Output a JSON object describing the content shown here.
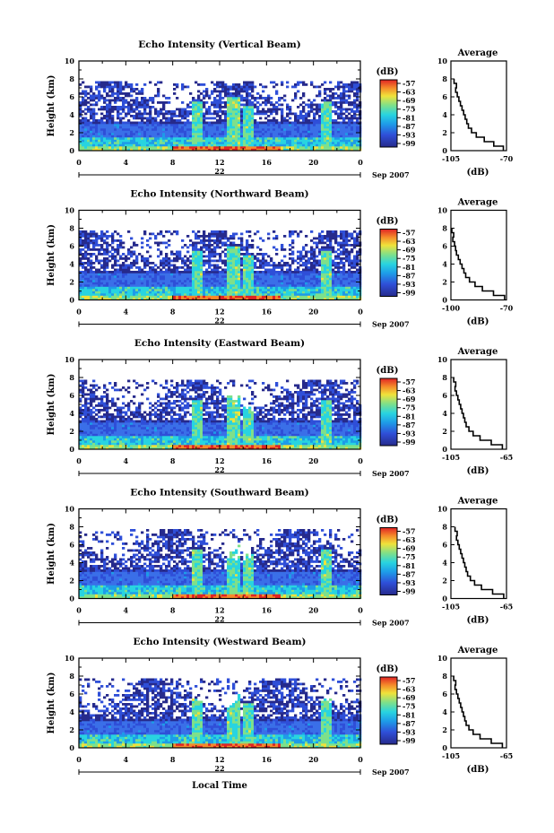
{
  "chart_data": [
    {
      "type": "heatmap",
      "title": "Echo Intensity (Vertical Beam)",
      "ylabel": "Height (km)",
      "ylim": [
        0,
        10
      ],
      "yticks": [
        0,
        2,
        4,
        6,
        8,
        10
      ],
      "xlim": [
        0,
        24
      ],
      "xticks": [
        "0",
        "4",
        "8",
        "12",
        "16",
        "20",
        "0"
      ],
      "day": "22",
      "month_label": "Sep 2007",
      "colorbar": {
        "unit": "(dB)",
        "ticks": [
          "-57",
          "-63",
          "-69",
          "-75",
          "-81",
          "-87",
          "-93",
          "-99"
        ],
        "range": [
          -99,
          -57
        ]
      },
      "average": {
        "title": "Average",
        "xlabel": "(dB)",
        "xlim": [
          -105,
          -70
        ],
        "xticks": [
          "-105",
          "-70"
        ],
        "heights": [
          0,
          0.5,
          1,
          1.5,
          2,
          2.5,
          3,
          3.5,
          4,
          4.5,
          5,
          5.5,
          6,
          6.5,
          7,
          7.5
        ],
        "values": [
          -72,
          -78,
          -84,
          -89,
          -92,
          -94,
          -95,
          -96,
          -97,
          -98,
          -99,
          -100,
          -101,
          -102,
          -101.5,
          -103
        ]
      }
    },
    {
      "type": "heatmap",
      "title": "Echo Intensity (Northward Beam)",
      "ylabel": "Height (km)",
      "ylim": [
        0,
        10
      ],
      "yticks": [
        0,
        2,
        4,
        6,
        8,
        10
      ],
      "xlim": [
        0,
        24
      ],
      "xticks": [
        "0",
        "4",
        "8",
        "12",
        "16",
        "20",
        "0"
      ],
      "day": "22",
      "month_label": "Sep 2007",
      "colorbar": {
        "unit": "(dB)",
        "ticks": [
          "-57",
          "-63",
          "-69",
          "-75",
          "-81",
          "-87",
          "-93",
          "-99"
        ],
        "range": [
          -99,
          -57
        ]
      },
      "average": {
        "title": "Average",
        "xlabel": "(dB)",
        "xlim": [
          -100,
          -70
        ],
        "xticks": [
          "-100",
          "-70"
        ],
        "heights": [
          0,
          0.5,
          1,
          1.5,
          2,
          2.5,
          3,
          3.5,
          4,
          4.5,
          5,
          5.5,
          6,
          6.5,
          7,
          7.5
        ],
        "values": [
          -71,
          -77,
          -83,
          -87,
          -90,
          -92,
          -93,
          -94,
          -95,
          -96,
          -97,
          -97.5,
          -98,
          -99,
          -98.5,
          -99.5
        ]
      }
    },
    {
      "type": "heatmap",
      "title": "Echo Intensity (Eastward Beam)",
      "ylabel": "Height (km)",
      "ylim": [
        0,
        10
      ],
      "yticks": [
        0,
        2,
        4,
        6,
        8,
        10
      ],
      "xlim": [
        0,
        24
      ],
      "xticks": [
        "0",
        "4",
        "8",
        "12",
        "16",
        "20",
        "0"
      ],
      "day": "22",
      "month_label": "Sep 2007",
      "colorbar": {
        "unit": "(dB)",
        "ticks": [
          "-57",
          "-63",
          "-69",
          "-75",
          "-81",
          "-87",
          "-93",
          "-99"
        ],
        "range": [
          -99,
          -57
        ]
      },
      "average": {
        "title": "Average",
        "xlabel": "(dB)",
        "xlim": [
          -105,
          -65
        ],
        "xticks": [
          "-105",
          "-65"
        ],
        "heights": [
          0,
          0.5,
          1,
          1.5,
          2,
          2.5,
          3,
          3.5,
          4,
          4.5,
          5,
          5.5,
          6,
          6.5,
          7,
          7.5
        ],
        "values": [
          -68,
          -76,
          -84,
          -89,
          -92,
          -94,
          -95,
          -96,
          -97,
          -98,
          -99,
          -100,
          -101,
          -102,
          -101.5,
          -103
        ]
      }
    },
    {
      "type": "heatmap",
      "title": "Echo Intensity (Southward Beam)",
      "ylabel": "Height (km)",
      "ylim": [
        0,
        10
      ],
      "yticks": [
        0,
        2,
        4,
        6,
        8,
        10
      ],
      "xlim": [
        0,
        24
      ],
      "xticks": [
        "0",
        "4",
        "8",
        "12",
        "16",
        "20",
        "0"
      ],
      "day": "22",
      "month_label": "Sep 2007",
      "colorbar": {
        "unit": "(dB)",
        "ticks": [
          "-57",
          "-63",
          "-69",
          "-75",
          "-81",
          "-87",
          "-93",
          "-99"
        ],
        "range": [
          -99,
          -57
        ]
      },
      "average": {
        "title": "Average",
        "xlabel": "(dB)",
        "xlim": [
          -105,
          -65
        ],
        "xticks": [
          "-105",
          "-65"
        ],
        "heights": [
          0,
          0.5,
          1,
          1.5,
          2,
          2.5,
          3,
          3.5,
          4,
          4.5,
          5,
          5.5,
          6,
          6.5,
          7,
          7.5
        ],
        "values": [
          -67,
          -75,
          -83,
          -88,
          -91,
          -93,
          -94,
          -95,
          -96,
          -97,
          -98,
          -99,
          -100,
          -101,
          -100.5,
          -102
        ]
      }
    },
    {
      "type": "heatmap",
      "title": "Echo Intensity (Westward Beam)",
      "ylabel": "Height (km)",
      "ylim": [
        0,
        10
      ],
      "yticks": [
        0,
        2,
        4,
        6,
        8,
        10
      ],
      "xlim": [
        0,
        24
      ],
      "xticks": [
        "0",
        "4",
        "8",
        "12",
        "16",
        "20",
        "0"
      ],
      "day": "22",
      "month_label": "Sep 2007",
      "xlabel": "Local Time",
      "colorbar": {
        "unit": "(dB)",
        "ticks": [
          "-57",
          "-63",
          "-69",
          "-75",
          "-81",
          "-87",
          "-93",
          "-99"
        ],
        "range": [
          -99,
          -57
        ]
      },
      "average": {
        "title": "Average",
        "xlabel": "(dB)",
        "xlim": [
          -105,
          -65
        ],
        "xticks": [
          "-105",
          "-65"
        ],
        "heights": [
          0,
          0.5,
          1,
          1.5,
          2,
          2.5,
          3,
          3.5,
          4,
          4.5,
          5,
          5.5,
          6,
          6.5,
          7,
          7.5
        ],
        "values": [
          -68,
          -76,
          -84,
          -89,
          -92,
          -94,
          -95,
          -96,
          -97,
          -98,
          -99,
          -100,
          -101,
          -102,
          -101.5,
          -103
        ]
      }
    }
  ]
}
